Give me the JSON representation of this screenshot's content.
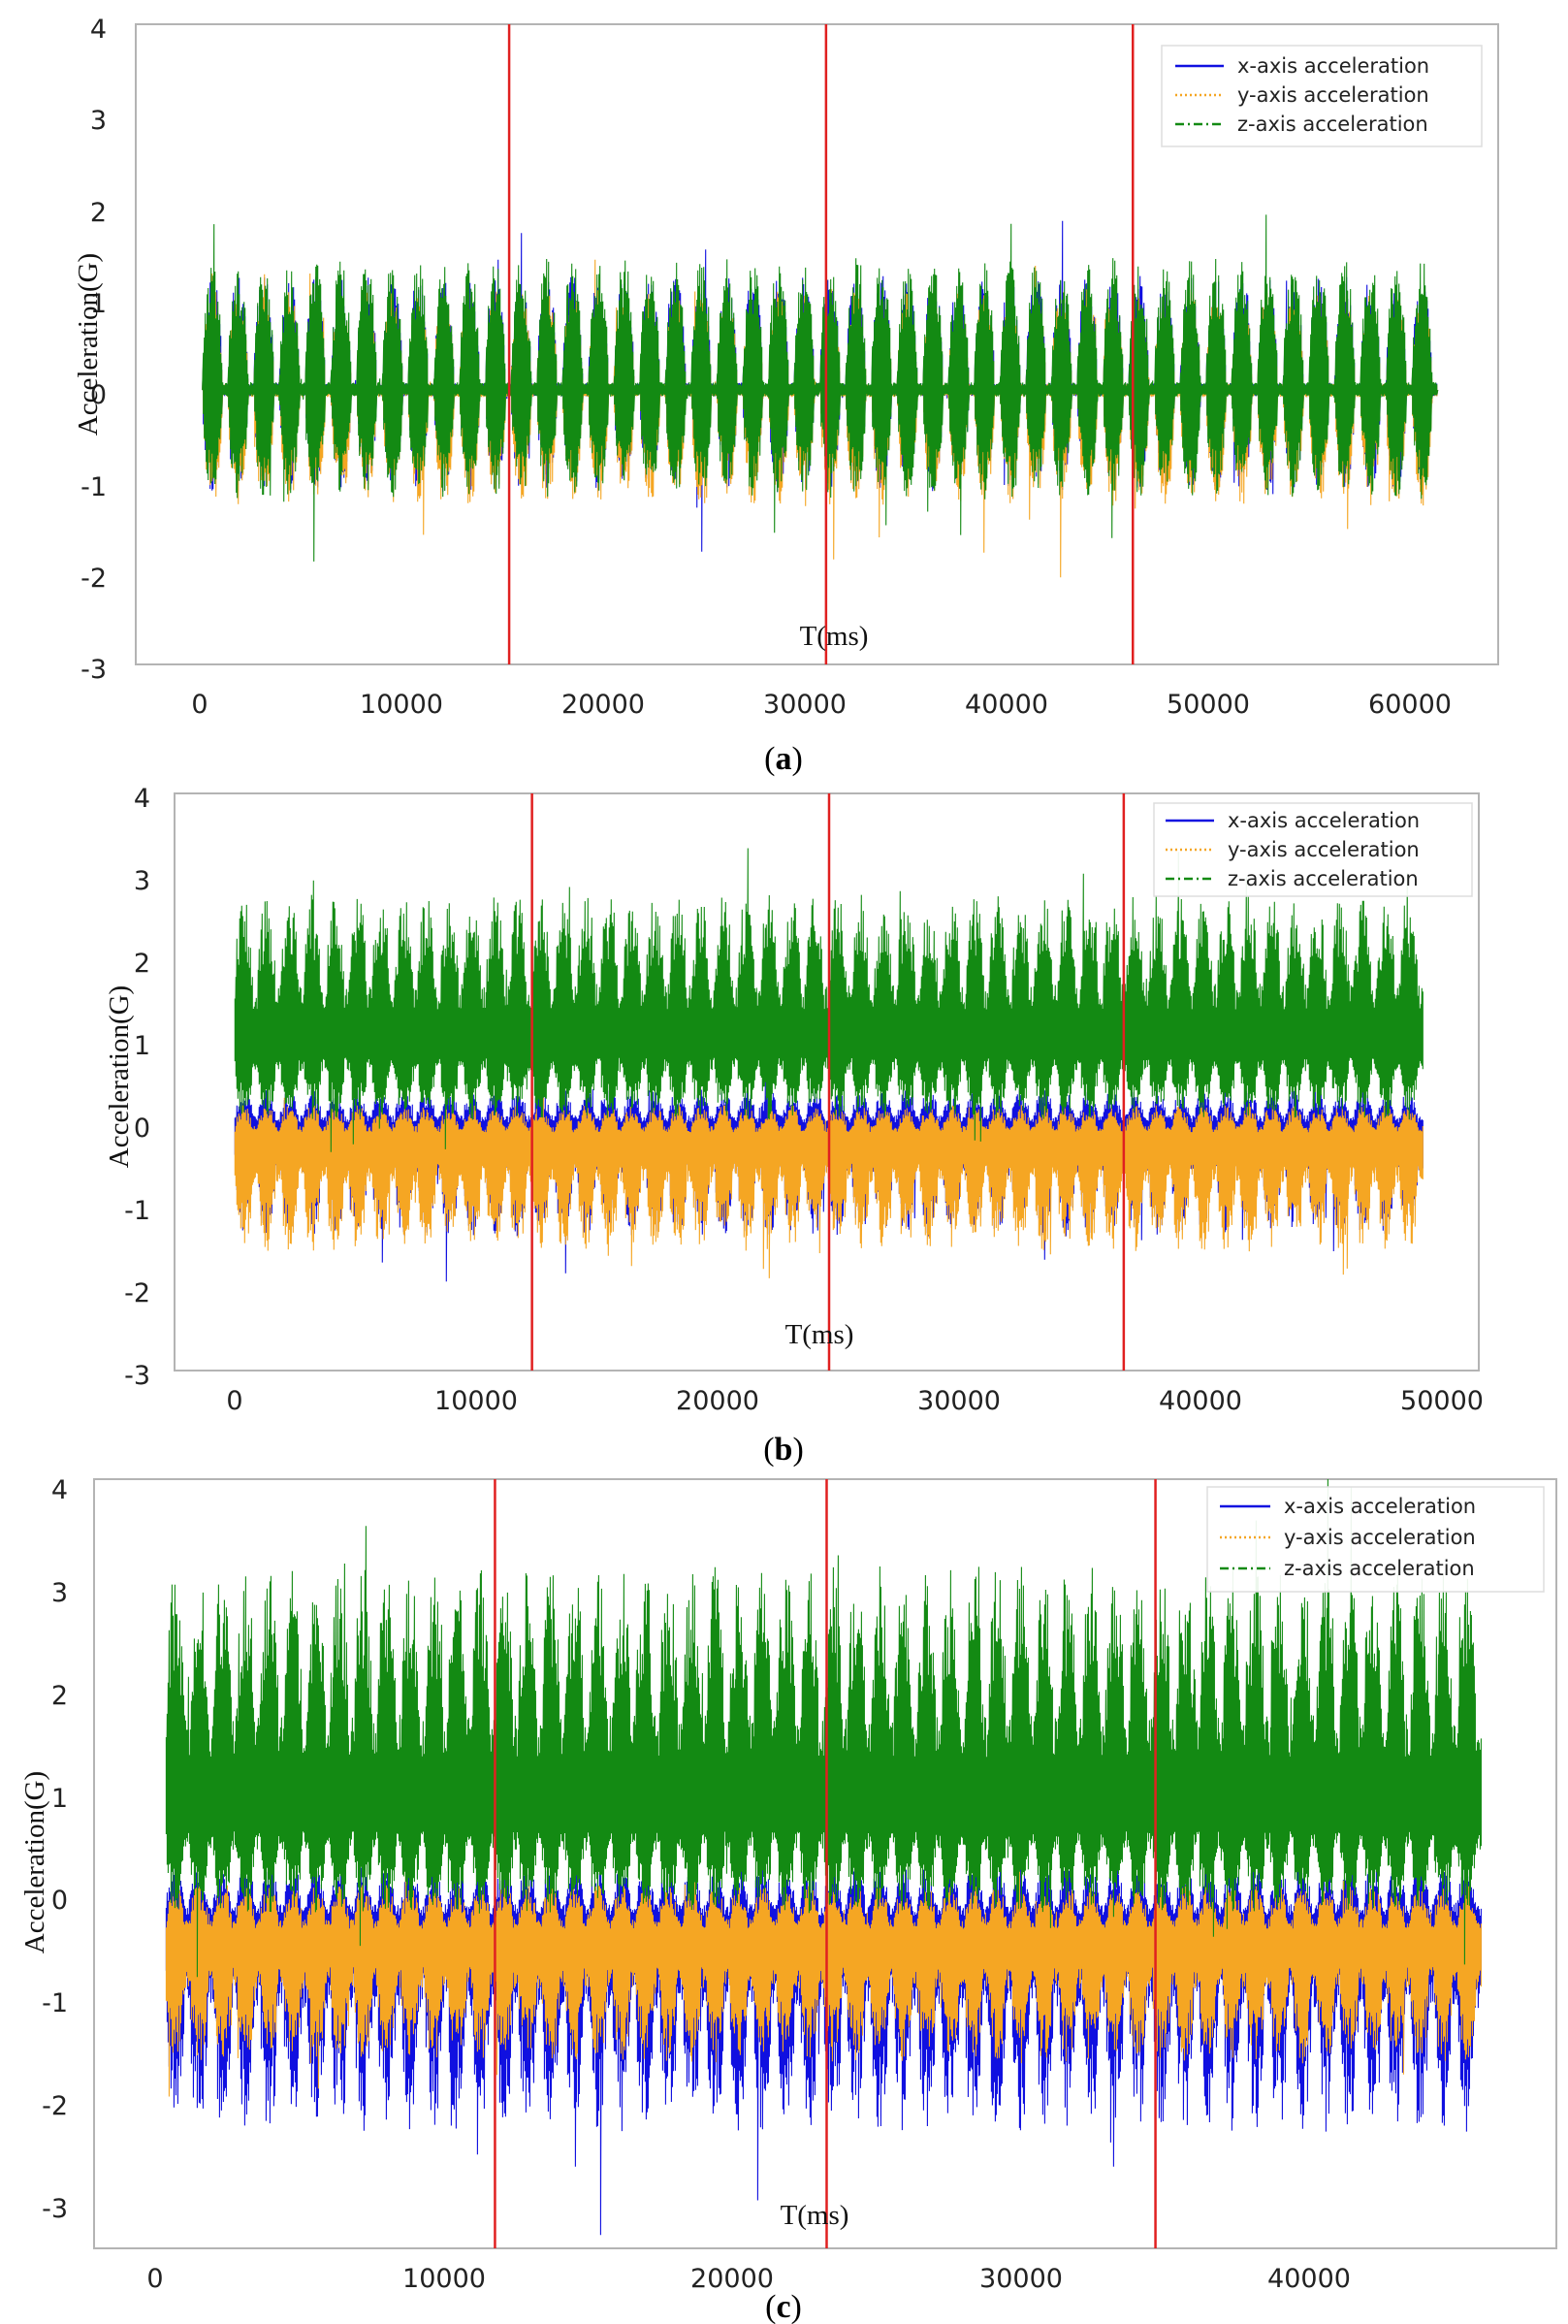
{
  "colors": {
    "x_axis": "#1010e0",
    "y_axis": "#f5a623",
    "z_axis": "#138a13",
    "marker": "#e02020",
    "frame": "#b4b4b4"
  },
  "chart_data": [
    {
      "type": "line",
      "caption_letter": "a",
      "xlabel": "T(ms)",
      "ylabel": "Acceleration(G)",
      "xlim": [
        -3000,
        64500
      ],
      "ylim": [
        -3,
        4
      ],
      "xticks": [
        0,
        10000,
        20000,
        30000,
        40000,
        50000,
        60000
      ],
      "yticks": [
        -3,
        -2,
        -1,
        0,
        1,
        2,
        3,
        4
      ],
      "xtick_labels": [
        "0",
        "10000",
        "20000",
        "30000",
        "40000",
        "50000",
        "60000"
      ],
      "ytick_labels": [
        "-3",
        "-2",
        "-1",
        "0",
        "1",
        "2",
        "3",
        "4"
      ],
      "vlines": [
        15500,
        31200,
        46400
      ],
      "duration_ms": 61500,
      "start_ms": 300,
      "bursts": 48,
      "series": [
        {
          "name": "x-axis acceleration",
          "style": "solid",
          "baseline": 0.0,
          "upper": 1.5,
          "lower": -1.4
        },
        {
          "name": "y-axis acceleration",
          "style": "dotted",
          "baseline": 0.0,
          "upper": 1.3,
          "lower": -1.6
        },
        {
          "name": "z-axis acceleration",
          "style": "dashdot",
          "baseline": 0.0,
          "upper": 1.7,
          "lower": -1.5
        }
      ],
      "legend": [
        "x-axis acceleration",
        "y-axis acceleration",
        "z-axis acceleration"
      ],
      "legend_position": "top-right"
    },
    {
      "type": "line",
      "caption_letter": "b",
      "xlabel": "T(ms)",
      "ylabel": "Acceleration(G)",
      "xlim": [
        -2500,
        51500
      ],
      "ylim": [
        -3,
        4
      ],
      "xticks": [
        0,
        10000,
        20000,
        30000,
        40000,
        50000
      ],
      "yticks": [
        -3,
        -2,
        -1,
        0,
        1,
        2,
        3,
        4
      ],
      "xtick_labels": [
        "0",
        "10000",
        "20000",
        "30000",
        "40000",
        "50000"
      ],
      "ytick_labels": [
        "-3",
        "-2",
        "-1",
        "0",
        "1",
        "2",
        "3",
        "4"
      ],
      "vlines": [
        12300,
        24600,
        36800
      ],
      "duration_ms": 49200,
      "start_ms": 0,
      "bursts": 52,
      "series": [
        {
          "name": "x-axis acceleration",
          "style": "solid",
          "baseline": -0.1,
          "upper": 0.5,
          "lower": -1.7
        },
        {
          "name": "y-axis acceleration",
          "style": "dotted",
          "baseline": -0.2,
          "upper": 0.3,
          "lower": -1.9
        },
        {
          "name": "z-axis acceleration",
          "style": "dashdot",
          "baseline": 1.0,
          "upper": 3.1,
          "lower": -0.2
        }
      ],
      "legend": [
        "x-axis acceleration",
        "y-axis acceleration",
        "z-axis acceleration"
      ],
      "legend_position": "top-right"
    },
    {
      "type": "line",
      "caption_letter": "c",
      "xlabel": "T(ms)",
      "ylabel": "Acceleration(G)",
      "xlim": [
        -2500,
        48200
      ],
      "ylim": [
        -3,
        4
      ],
      "xticks": [
        0,
        10000,
        20000,
        30000,
        40000
      ],
      "yticks": [
        -3,
        -2,
        -1,
        0,
        1,
        2,
        3,
        4
      ],
      "xtick_labels": [
        "0",
        "10000",
        "20000",
        "30000",
        "40000"
      ],
      "ytick_labels": [
        "-3",
        "-2",
        "-1",
        "0",
        "1",
        "2",
        "3",
        "4"
      ],
      "vlines": [
        11400,
        22900,
        34300
      ],
      "duration_ms": 45600,
      "start_ms": 0,
      "bursts": 56,
      "series": [
        {
          "name": "x-axis acceleration",
          "style": "solid",
          "baseline": -0.1,
          "upper": 0.6,
          "lower": -2.4
        },
        {
          "name": "y-axis acceleration",
          "style": "dotted",
          "baseline": -0.2,
          "upper": 0.4,
          "lower": -1.6
        },
        {
          "name": "z-axis acceleration",
          "style": "dashdot",
          "baseline": 1.0,
          "upper": 3.6,
          "lower": -0.2
        }
      ],
      "legend": [
        "x-axis acceleration",
        "y-axis acceleration",
        "z-axis acceleration"
      ],
      "legend_position": "top-right"
    }
  ]
}
